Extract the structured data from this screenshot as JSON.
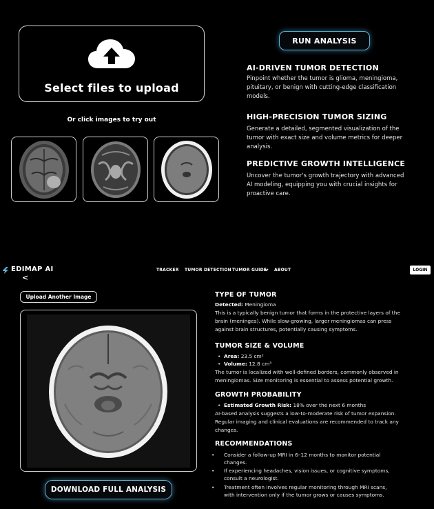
{
  "upload": {
    "label": "Select files to upload",
    "try_label": "Or click images to try out",
    "samples": [
      "sample-mri-1",
      "sample-mri-2",
      "sample-mri-3"
    ]
  },
  "run_button": "RUN ANALYSIS",
  "features": [
    {
      "title": "AI-DRIVEN TUMOR DETECTION",
      "lines": [
        "Pinpoint whether the tumor is glioma, meningioma,",
        "pituitary, or benign with cutting-edge classification",
        "models."
      ]
    },
    {
      "title": "HIGH-PRECISION TUMOR SIZING",
      "lines": [
        "Generate a detailed, segmented visualization of the",
        "tumor with exact size and volume metrics for deeper",
        "analysis."
      ]
    },
    {
      "title": "PREDICTIVE GROWTH INTELLIGENCE",
      "lines": [
        "Uncover the tumor's growth trajectory with advanced",
        "AI modeling, equipping you with crucial insights for",
        "proactive care."
      ]
    }
  ],
  "nav": {
    "logo": "EDIMAP AI",
    "links": [
      "TRACKER",
      "TUMOR DETECTION",
      "TUMOR GUIDE",
      "ABOUT"
    ],
    "dropdown_icon": "chevron-down-icon",
    "login": "LOGIN",
    "back": "<"
  },
  "result": {
    "upload_another": "Upload Another Image",
    "download": "DOWNLOAD FULL ANALYSIS",
    "type": {
      "title": "TYPE OF TUMOR",
      "detected_label": "Detected:",
      "detected_value": "Meningioma",
      "lines": [
        "This is a typically benign tumor that forms in the protective layers of the",
        "brain (meninges). While slow-growing, larger meningiomas can press",
        "against brain structures, potentially causing symptoms."
      ]
    },
    "size": {
      "title": "TUMOR SIZE & VOLUME",
      "area_label": "Area:",
      "area_value": "23.5 cm²",
      "volume_label": "Volume:",
      "volume_value": "12.8 cm³",
      "lines": [
        "The tumor is localized with well-defined borders, commonly observed in",
        "meningiomas. Size monitoring is essential to assess potential growth."
      ]
    },
    "growth": {
      "title": "GROWTH PROBABILITY",
      "risk_label": "Estimated Growth Risk:",
      "risk_value": "18% over the next 6 months",
      "lines": [
        "AI-based analysis suggests a low-to-moderate risk of tumor expansion.",
        "Regular imaging and clinical evaluations are recommended to track any",
        "changes."
      ]
    },
    "recs": {
      "title": "RECOMMENDATIONS",
      "items": [
        [
          "Consider a follow-up MRI in 6–12 months to monitor potential",
          "changes."
        ],
        [
          "If experiencing headaches, vision issues, or cognitive symptoms,",
          "consult a neurologist."
        ],
        [
          "Treatment often involves regular monitoring through MRI scans,",
          "with intervention only if the tumor grows or causes symptoms."
        ]
      ]
    }
  },
  "colors": {
    "accent": "#5fb3d6",
    "background": "#000000"
  }
}
